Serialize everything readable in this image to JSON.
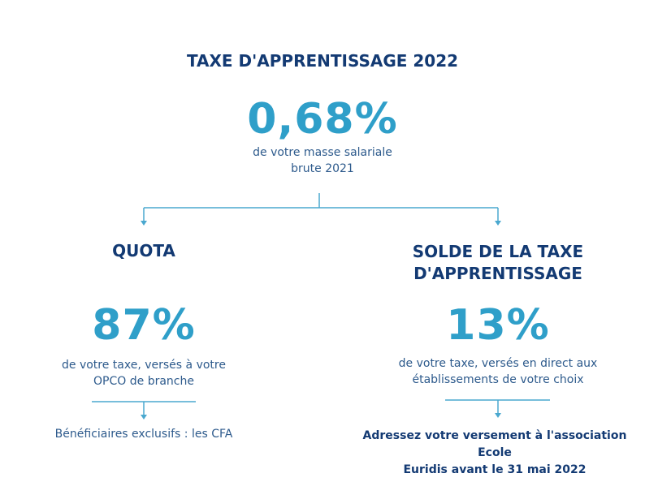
{
  "header": {
    "title": "TAXE D'APPRENTISSAGE 2022",
    "main_percent": "0,68%",
    "main_desc_line1": "de votre masse salariale",
    "main_desc_line2": "brute 2021"
  },
  "left": {
    "heading": "QUOTA",
    "percent": "87%",
    "desc_line1": "de votre taxe, versés à votre",
    "desc_line2": "OPCO de branche",
    "note": "Bénéficiaires exclusifs : les CFA"
  },
  "right": {
    "heading_line1": "SOLDE DE LA TAXE",
    "heading_line2": "D'APPRENTISSAGE",
    "percent": "13%",
    "desc_line1": "de votre taxe, versés en direct aux",
    "desc_line2": "établissements de votre choix",
    "note_line1": "Adressez votre versement à l'association Ecole",
    "note_line2": "Euridis avant le 31 mai 2022"
  },
  "colors": {
    "navy": "#133a73",
    "cyan": "#2f9fc9",
    "line": "#4aa8cf"
  }
}
